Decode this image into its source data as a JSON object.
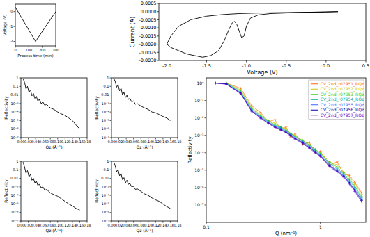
{
  "chart_data": [
    {
      "type": "line",
      "xlabel": "Process time (min)",
      "ylabel": "Voltage (V)",
      "x": [
        0,
        150,
        300
      ],
      "series": [
        {
          "color": "#000000",
          "values": [
            0.3,
            -2,
            0
          ]
        }
      ],
      "xlim": [
        0,
        300
      ],
      "xticks": [
        0,
        100,
        200,
        300
      ],
      "ylim": [
        -2.3,
        0.5
      ],
      "yticks": [
        -2,
        -1,
        0
      ]
    },
    {
      "type": "line",
      "xlabel": "Voltage (V)",
      "ylabel": "Current (A)",
      "x": [
        0.15,
        0,
        -0.3,
        -0.6,
        -0.9,
        -1.1,
        -1.3,
        -1.5,
        -1.7,
        -1.85,
        -1.95,
        -2.0,
        -1.95,
        -1.85,
        -1.75,
        -1.65,
        -1.55,
        -1.45,
        -1.35,
        -1.28,
        -1.22,
        -1.18,
        -1.15,
        -1.12,
        -1.09,
        -1.06,
        -1.03,
        -1.0,
        -0.95,
        -0.85,
        -0.7,
        -0.5,
        -0.3,
        0,
        0.15
      ],
      "series": [
        {
          "color": "#000000",
          "values": [
            0,
            -2e-05,
            -4e-05,
            -6e-05,
            -9e-05,
            -0.00012,
            -0.00018,
            -0.00028,
            -0.0005,
            -0.0009,
            -0.0015,
            -0.002,
            -0.0022,
            -0.0024,
            -0.0026,
            -0.0027,
            -0.0028,
            -0.0027,
            -0.0024,
            -0.0018,
            -0.0011,
            -0.0007,
            -0.0006,
            -0.0008,
            -0.0012,
            -0.0016,
            -0.0015,
            -0.0009,
            -0.0004,
            -0.0002,
            -0.00012,
            -8e-05,
            -5e-05,
            -2e-05,
            0
          ]
        }
      ],
      "xlim": [
        -2.1,
        0.5
      ],
      "xticks": [
        {
          "value": -2,
          "label": "-2.0"
        },
        -1.5,
        {
          "value": -1,
          "label": "-1.0"
        },
        -0.5,
        {
          "value": 0,
          "label": "0.0"
        },
        0.5
      ],
      "ylim": [
        -0.003,
        0.0005
      ],
      "yticks": [
        {
          "value": -0.003,
          "label": "-0.0030"
        },
        -0.0025,
        {
          "value": -0.002,
          "label": "-0.0020"
        },
        -0.0015,
        {
          "value": -0.001,
          "label": "-0.0010"
        },
        -0.0005,
        {
          "value": 0,
          "label": "0.0000"
        },
        0.0005
      ]
    },
    {
      "type": "line",
      "log": "y",
      "xlabel": "Qz (Å⁻¹)",
      "ylabel": "Reflectivity",
      "x": [
        0.006,
        0.01,
        0.014,
        0.018,
        0.022,
        0.026,
        0.03,
        0.034,
        0.038,
        0.042,
        0.046,
        0.05,
        0.055,
        0.06,
        0.065,
        0.07,
        0.08,
        0.09,
        0.1,
        0.11,
        0.12,
        0.13,
        0.14,
        0.15,
        0.16
      ],
      "series": [
        {
          "color": "#000000",
          "values": [
            0.8,
            0.3,
            0.05,
            0.1,
            0.02,
            0.04,
            0.008,
            0.015,
            0.004,
            0.007,
            0.002,
            0.003,
            0.001,
            0.0015,
            0.0006,
            0.0008,
            0.0003,
            0.0002,
            0.0001,
            6e-05,
            4e-05,
            2e-05,
            1e-05,
            3e-06,
            1e-06
          ]
        }
      ],
      "xlim": [
        0,
        0.18
      ],
      "xticks": [
        {
          "value": 0,
          "label": "0.00"
        },
        0.02,
        0.04,
        0.06,
        0.08,
        {
          "value": 0.1,
          "label": "0.10"
        },
        0.12,
        0.14,
        0.16,
        0.18
      ],
      "ylim": [
        1e-07,
        1
      ],
      "yticks": [
        1,
        0.1,
        0.01,
        {
          "value": 0.001,
          "label": "10⁻³"
        },
        {
          "value": 0.0001,
          "label": "10⁻⁴"
        },
        {
          "value": 1e-05,
          "label": "10⁻⁵"
        },
        {
          "value": 1e-06,
          "label": "10⁻⁶"
        },
        {
          "value": 1e-07,
          "label": "10⁻⁷"
        }
      ]
    },
    {
      "type": "line",
      "log": "y",
      "xlabel": "Qz (Å⁻¹)",
      "ylabel": "Reflectivity",
      "x": [
        0.006,
        0.01,
        0.014,
        0.018,
        0.022,
        0.026,
        0.03,
        0.034,
        0.038,
        0.042,
        0.046,
        0.05,
        0.055,
        0.06,
        0.065,
        0.07,
        0.08,
        0.09,
        0.1,
        0.11,
        0.12,
        0.13,
        0.14,
        0.15,
        0.16
      ],
      "series": [
        {
          "color": "#000000",
          "values": [
            0.9,
            0.4,
            0.08,
            0.15,
            0.03,
            0.06,
            0.01,
            0.02,
            0.005,
            0.009,
            0.003,
            0.004,
            0.0015,
            0.002,
            0.0008,
            0.001,
            0.0005,
            0.0003,
            0.0002,
            0.0001,
            8e-05,
            5e-05,
            3e-05,
            2e-05,
            1e-05
          ]
        }
      ],
      "xlim": [
        0,
        0.18
      ],
      "xticks": [
        {
          "value": 0,
          "label": "0.00"
        },
        0.02,
        0.04,
        0.06,
        0.08,
        {
          "value": 0.1,
          "label": "0.10"
        },
        0.12,
        0.14,
        0.16,
        0.18
      ],
      "ylim": [
        1e-07,
        1
      ],
      "yticks": [
        1,
        0.1,
        0.01,
        {
          "value": 0.001,
          "label": "10⁻³"
        },
        {
          "value": 0.0001,
          "label": "10⁻⁴"
        },
        {
          "value": 1e-05,
          "label": "10⁻⁵"
        },
        {
          "value": 1e-06,
          "label": "10⁻⁶"
        },
        {
          "value": 1e-07,
          "label": "10⁻⁷"
        }
      ]
    },
    {
      "type": "line",
      "log": "y",
      "xlabel": "Qz (Å⁻¹)",
      "ylabel": "Reflectivity",
      "x": [
        0.006,
        0.01,
        0.014,
        0.018,
        0.022,
        0.026,
        0.03,
        0.034,
        0.038,
        0.042,
        0.046,
        0.05,
        0.055,
        0.06,
        0.065,
        0.07,
        0.08,
        0.09,
        0.1,
        0.11,
        0.12,
        0.13,
        0.14,
        0.15,
        0.16
      ],
      "series": [
        {
          "color": "#000000",
          "values": [
            0.8,
            0.2,
            0.04,
            0.08,
            0.015,
            0.03,
            0.006,
            0.01,
            0.003,
            0.005,
            0.0015,
            0.002,
            0.0008,
            0.001,
            0.0004,
            0.0005,
            0.0002,
            0.00012,
            8e-05,
            4e-05,
            2e-05,
            1e-05,
            6e-06,
            3e-06,
            2e-06
          ]
        }
      ],
      "xlim": [
        0,
        0.18
      ],
      "xticks": [
        {
          "value": 0,
          "label": "0.00"
        },
        0.02,
        0.04,
        0.06,
        0.08,
        {
          "value": 0.1,
          "label": "0.10"
        },
        0.12,
        0.14,
        0.16,
        0.18
      ],
      "ylim": [
        1e-07,
        1
      ],
      "yticks": [
        1,
        0.1,
        0.01,
        {
          "value": 0.001,
          "label": "10⁻³"
        },
        {
          "value": 0.0001,
          "label": "10⁻⁴"
        },
        {
          "value": 1e-05,
          "label": "10⁻⁵"
        },
        {
          "value": 1e-06,
          "label": "10⁻⁶"
        },
        {
          "value": 1e-07,
          "label": "10⁻⁷"
        }
      ]
    },
    {
      "type": "line",
      "log": "y",
      "xlabel": "Qz (Å⁻¹)",
      "ylabel": "Reflectivity",
      "x": [
        0.006,
        0.01,
        0.014,
        0.018,
        0.022,
        0.026,
        0.03,
        0.034,
        0.038,
        0.042,
        0.046,
        0.05,
        0.055,
        0.06,
        0.065,
        0.07,
        0.08,
        0.09,
        0.1,
        0.11,
        0.12,
        0.13,
        0.14,
        0.15,
        0.16
      ],
      "series": [
        {
          "color": "#000000",
          "values": [
            0.9,
            0.3,
            0.06,
            0.1,
            0.02,
            0.035,
            0.007,
            0.012,
            0.003,
            0.006,
            0.002,
            0.0025,
            0.001,
            0.0012,
            0.0005,
            0.0006,
            0.0003,
            0.00015,
            0.0001,
            5e-05,
            3e-05,
            2e-05,
            1e-05,
            5e-06,
            3e-06
          ]
        }
      ],
      "xlim": [
        0,
        0.18
      ],
      "xticks": [
        {
          "value": 0,
          "label": "0.00"
        },
        0.02,
        0.04,
        0.06,
        0.08,
        {
          "value": 0.1,
          "label": "0.10"
        },
        0.12,
        0.14,
        0.16,
        0.18
      ],
      "ylim": [
        1e-07,
        1
      ],
      "yticks": [
        1,
        0.1,
        0.01,
        {
          "value": 0.001,
          "label": "10⁻³"
        },
        {
          "value": 0.0001,
          "label": "10⁻⁴"
        },
        {
          "value": 1e-05,
          "label": "10⁻⁵"
        },
        {
          "value": 1e-06,
          "label": "10⁻⁶"
        },
        {
          "value": 1e-07,
          "label": "10⁻⁷"
        }
      ]
    },
    {
      "type": "line",
      "log": true,
      "xlabel": "Q (nm⁻¹)",
      "ylabel": "Reflectivity",
      "legend": "upper right",
      "x": [
        0.12,
        0.15,
        0.2,
        0.25,
        0.3,
        0.35,
        0.4,
        0.45,
        0.5,
        0.55,
        0.6,
        0.7,
        0.8,
        0.9,
        1.0,
        1.2,
        1.4,
        1.6,
        1.8,
        2.0,
        2.3
      ],
      "series": [
        {
          "name": "CV_2nd_r07951_RQz",
          "color": "#ff6600",
          "marker": "plus",
          "values": [
            1,
            1,
            0.5,
            0.05,
            0.02,
            0.006,
            0.008,
            0.002,
            0.003,
            0.0008,
            0.0012,
            0.0003,
            0.0004,
            0.0001,
            0.00012,
            2e-05,
            3e-05,
            6e-06,
            5e-06,
            2e-06,
            5e-07
          ]
        },
        {
          "name": "CV_2nd_r07952_RQz",
          "color": "#c8c800",
          "marker": "plus",
          "values": [
            1,
            1,
            0.4,
            0.04,
            0.015,
            0.007,
            0.005,
            0.003,
            0.0025,
            0.0012,
            0.001,
            0.0005,
            0.0003,
            0.00015,
            0.0001,
            3e-05,
            2e-05,
            8e-06,
            4e-06,
            1.5e-06,
            4e-07
          ]
        },
        {
          "name": "CV_2nd_r07953_RQz",
          "color": "#33cc33",
          "marker": "plus",
          "values": [
            1,
            1,
            0.35,
            0.035,
            0.013,
            0.007,
            0.004,
            0.003,
            0.002,
            0.0013,
            0.0009,
            0.0005,
            0.00028,
            0.00016,
            9e-05,
            3e-05,
            1.5e-05,
            7e-06,
            3e-06,
            1.2e-06,
            3e-07
          ]
        },
        {
          "name": "CV_2nd_r07954_RQz",
          "color": "#00aaaa",
          "marker": "plus",
          "values": [
            1,
            0.95,
            0.3,
            0.03,
            0.012,
            0.006,
            0.0035,
            0.0028,
            0.0018,
            0.0012,
            0.0008,
            0.00045,
            0.00025,
            0.00014,
            8e-05,
            2.5e-05,
            1.2e-05,
            6e-06,
            2.5e-06,
            1e-06,
            2.5e-07
          ]
        },
        {
          "name": "CV_2nd_r07955_RQz",
          "color": "#3366ff",
          "marker": "plus",
          "values": [
            1,
            0.9,
            0.28,
            0.028,
            0.011,
            0.0055,
            0.0033,
            0.0025,
            0.0016,
            0.0011,
            0.0007,
            0.0004,
            0.00022,
            0.00012,
            7e-05,
            2e-05,
            1e-05,
            5e-06,
            2e-06,
            8e-07,
            2e-07
          ]
        },
        {
          "name": "CV_2nd_r07956_RQz",
          "color": "#0000aa",
          "marker": "plus",
          "values": [
            1,
            0.9,
            0.26,
            0.025,
            0.01,
            0.005,
            0.003,
            0.0022,
            0.0015,
            0.001,
            0.00065,
            0.00037,
            0.0002,
            0.00011,
            6.5e-05,
            1.8e-05,
            9e-06,
            4.5e-06,
            1.8e-06,
            7e-07,
            1.8e-07
          ]
        },
        {
          "name": "CV_2nd_r07957_RQz",
          "color": "#6600cc",
          "marker": "plus",
          "values": [
            1,
            0.85,
            0.25,
            0.024,
            0.0095,
            0.0048,
            0.0028,
            0.002,
            0.0014,
            0.0009,
            0.0006,
            0.00034,
            0.00018,
            0.0001,
            6e-05,
            1.6e-05,
            8e-06,
            4e-06,
            1.6e-06,
            6e-07,
            1.5e-07
          ]
        }
      ],
      "xlim": [
        0.1,
        2.5
      ],
      "xticks": [
        0.1,
        1
      ],
      "ylim": [
        1e-08,
        2
      ],
      "yticks": [
        {
          "value": 1e-07,
          "label": "10⁻⁷"
        },
        {
          "value": 1e-06,
          "label": "10⁻⁶"
        },
        {
          "value": 1e-05,
          "label": "10⁻⁵"
        },
        {
          "value": 0.0001,
          "label": "10⁻⁴"
        },
        {
          "value": 0.001,
          "label": "10⁻³"
        },
        {
          "value": 0.01,
          "label": "10⁻²"
        },
        {
          "value": 0.1,
          "label": "10⁻¹"
        },
        {
          "value": 1,
          "label": "10⁰"
        }
      ]
    }
  ]
}
